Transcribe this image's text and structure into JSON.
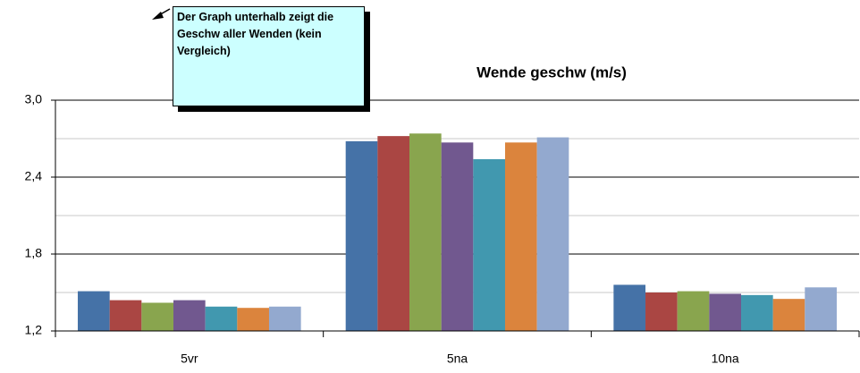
{
  "chart_data": {
    "type": "bar",
    "title": "Wende geschw (m/s)",
    "annotation": "Der Graph unterhalb zeigt die Geschw aller Wenden (kein Vergleich)",
    "categories": [
      "5vr",
      "5na",
      "10na"
    ],
    "series": [
      {
        "color": "#4572a7",
        "values": [
          1.51,
          2.68,
          1.56
        ]
      },
      {
        "color": "#aa4643",
        "values": [
          1.44,
          2.72,
          1.5
        ]
      },
      {
        "color": "#89a54e",
        "values": [
          1.42,
          2.74,
          1.51
        ]
      },
      {
        "color": "#71588f",
        "values": [
          1.44,
          2.67,
          1.49
        ]
      },
      {
        "color": "#4198af",
        "values": [
          1.39,
          2.54,
          1.48
        ]
      },
      {
        "color": "#db843d",
        "values": [
          1.38,
          2.67,
          1.45
        ]
      },
      {
        "color": "#93a9cf",
        "values": [
          1.39,
          2.71,
          1.54
        ]
      }
    ],
    "ylim": [
      1.2,
      3.0
    ],
    "yticks": [
      {
        "value": 1.2,
        "label": "1,2"
      },
      {
        "value": 1.8,
        "label": "1,8"
      },
      {
        "value": 2.4,
        "label": "2,4"
      },
      {
        "value": 3.0,
        "label": "3,0"
      }
    ],
    "minor_yticks": [
      1.5,
      2.1,
      2.7
    ],
    "grid": true
  }
}
